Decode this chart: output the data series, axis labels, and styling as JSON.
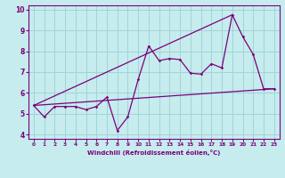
{
  "xlabel": "Windchill (Refroidissement éolien,°C)",
  "xlim": [
    -0.5,
    23.5
  ],
  "ylim": [
    3.8,
    10.2
  ],
  "yticks": [
    4,
    5,
    6,
    7,
    8,
    9,
    10
  ],
  "xticks": [
    0,
    1,
    2,
    3,
    4,
    5,
    6,
    7,
    8,
    9,
    10,
    11,
    12,
    13,
    14,
    15,
    16,
    17,
    18,
    19,
    20,
    21,
    22,
    23
  ],
  "bg_color": "#c6ecee",
  "grid_color": "#a0d4d8",
  "line_color": "#7b007b",
  "line1_x": [
    0,
    1,
    2,
    3,
    4,
    5,
    6,
    7,
    8,
    9,
    10,
    11,
    12,
    13,
    14,
    15,
    16,
    17,
    18,
    19,
    20,
    21,
    22,
    23
  ],
  "line1_y": [
    5.4,
    4.85,
    5.35,
    5.35,
    5.35,
    5.2,
    5.35,
    5.8,
    4.2,
    4.85,
    6.65,
    8.25,
    7.55,
    7.65,
    7.6,
    6.95,
    6.9,
    7.4,
    7.2,
    9.75,
    8.7,
    7.85,
    6.2,
    6.2
  ],
  "line2_x": [
    0,
    23
  ],
  "line2_y": [
    5.4,
    6.2
  ],
  "line3_x": [
    0,
    19
  ],
  "line3_y": [
    5.4,
    9.75
  ]
}
